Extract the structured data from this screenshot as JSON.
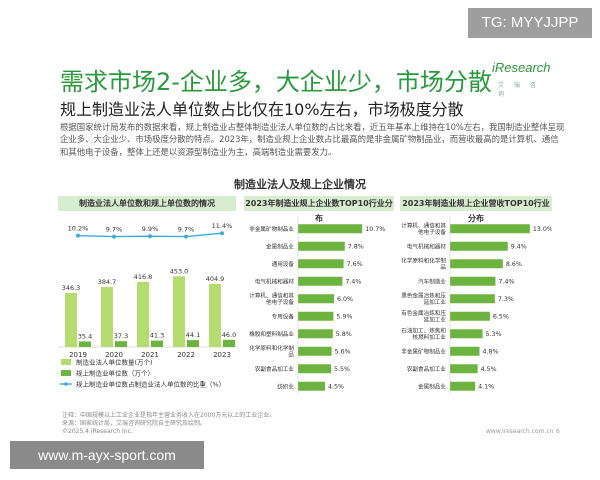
{
  "badge": "TG: MYYJJPP",
  "logo": {
    "brand": "iResearch",
    "sub": "艾 瑞 咨 询"
  },
  "title": "需求市场2-企业多，大企业少，市场分散",
  "subtitle": "规上制造业法人单位数占比仅在10%左右，市场极度分散",
  "description": "根据国家统计局发布的数据来看，规上制造业占整体制造业法人单位数的占比来看，近五年基本上维持在10%左右，我国制造业整体呈现企业多、大企业少、市场极度分散的特点。2023年，制造业规上企业数占比最高的是非金属矿物制品业，而营收最高的是计算机、通信和其他电子设备，整体上还是以资源型制造业为主，高端制造业需要发力。",
  "section_title": "制造业法人及规上企业情况",
  "colors": {
    "accent": "#2a9a3c",
    "bar_dark": "#6db33f",
    "bar_light": "#b5dc6e",
    "line": "#3aacd6",
    "header_bg": "#d8ecd0"
  },
  "chart_data": [
    {
      "type": "bar+line",
      "title": "制造业法人单位数和规上单位数的情况",
      "categories": [
        "2019",
        "2020",
        "2021",
        "2022",
        "2023"
      ],
      "series": [
        {
          "name": "制造业法人单位数量(万个)",
          "kind": "bar",
          "values": [
            346.3,
            384.7,
            416.8,
            453.0,
            404.9
          ],
          "labels": [
            "346.3",
            "384.7",
            "416.8",
            "453.0",
            "404.9"
          ]
        },
        {
          "name": "规上制造业单位数（万个）",
          "kind": "bar",
          "values": [
            35.4,
            37.3,
            41.3,
            44.1,
            46.0
          ],
          "labels": [
            "35.4",
            "37.3",
            "41.3",
            "44.1",
            "46.0"
          ]
        },
        {
          "name": "规上制造业单位数占制造业法人单位数的比重（%）",
          "kind": "line",
          "values": [
            10.2,
            9.7,
            9.9,
            9.7,
            11.4
          ],
          "labels": [
            "10.2%",
            "9.7%",
            "9.9%",
            "9.7%",
            "11.4%"
          ]
        }
      ],
      "ylim": [
        0,
        500
      ],
      "y2lim": [
        0,
        15
      ]
    },
    {
      "type": "hbar",
      "title": "2023年制造业规上企业数TOP10行业分布",
      "categories": [
        "非金属矿物制品业",
        "金属制品业",
        "通用设备",
        "电气机械和器材",
        "计算机、通信和其他电子设备",
        "专用设备",
        "橡胶和塑料制品业",
        "化学原料和化学制品",
        "农副食品加工业",
        "纺织业"
      ],
      "values": [
        10.7,
        7.8,
        7.6,
        7.4,
        6.0,
        5.9,
        5.8,
        5.6,
        5.5,
        4.5
      ],
      "labels": [
        "10.7%",
        "7.8%",
        "7.6%",
        "7.4%",
        "6.0%",
        "5.9%",
        "5.8%",
        "5.6%",
        "5.5%",
        "4.5%"
      ],
      "xlim": [
        0,
        12
      ]
    },
    {
      "type": "hbar",
      "title": "2023年制造业规上企业营收TOP10行业分布",
      "categories": [
        "计算机、通信和其他电子设备",
        "电气机械和器材",
        "化学原料和化学制品",
        "汽车制造业",
        "黑色金属冶炼和压延加工业",
        "有色金属冶炼和压延加工业",
        "石油加工、炼焦和核燃料加工业",
        "非金属矿物制品业",
        "农副食品加工业",
        "金属制品业"
      ],
      "values": [
        13.0,
        9.4,
        8.6,
        7.4,
        7.3,
        6.5,
        5.3,
        4.8,
        4.5,
        4.1
      ],
      "labels": [
        "13.0%",
        "9.4%",
        "8.6%",
        "7.4%",
        "7.3%",
        "6.5%",
        "5.3%",
        "4.8%",
        "4.5%",
        "4.1%"
      ],
      "xlim": [
        0,
        14
      ]
    }
  ],
  "notes": {
    "note": "注释：中国规模以上工业企业是指年主营业务收入在2000万元以上的工业企业。",
    "source": "来源：国家统计局，艾瑞咨询研究院自主研究及绘制。",
    "copyright": "©2025.4 iResearch Inc.",
    "url": "www.iresearch.com.cn",
    "page": "6"
  },
  "watermark": "www.m-ayx-sport.com"
}
